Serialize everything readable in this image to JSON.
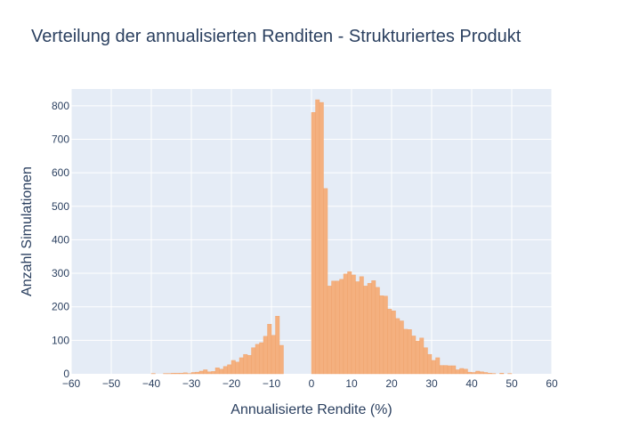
{
  "colors": {
    "plot_bg": "#e5ecf6",
    "grid": "#ffffff",
    "bar_fill": "#f4b07f",
    "bar_stroke": "#f0a26a",
    "text": "#2a3f5f"
  },
  "chart_data": {
    "type": "bar",
    "title": "Verteilung der annualisierten Renditen - Strukturiertes Produkt",
    "xlabel": "Annualisierte Rendite (%)",
    "ylabel": "Anzahl Simulationen",
    "xlim": [
      -60,
      60
    ],
    "ylim": [
      0,
      850
    ],
    "x_ticks": [
      "−60",
      "−50",
      "−40",
      "−30",
      "−20",
      "−10",
      "0",
      "10",
      "20",
      "30",
      "40",
      "50",
      "60"
    ],
    "y_ticks": [
      "0",
      "100",
      "200",
      "300",
      "400",
      "500",
      "600",
      "700",
      "800"
    ],
    "bin_width": 1,
    "grid": true,
    "bins": [
      {
        "x": -40,
        "y": 1
      },
      {
        "x": -37,
        "y": 1
      },
      {
        "x": -36,
        "y": 1
      },
      {
        "x": -35,
        "y": 2
      },
      {
        "x": -34,
        "y": 2
      },
      {
        "x": -33,
        "y": 2
      },
      {
        "x": -32,
        "y": 3
      },
      {
        "x": -31,
        "y": 1
      },
      {
        "x": -30,
        "y": 4
      },
      {
        "x": -29,
        "y": 5
      },
      {
        "x": -28,
        "y": 8
      },
      {
        "x": -27,
        "y": 12
      },
      {
        "x": -26,
        "y": 6
      },
      {
        "x": -25,
        "y": 7
      },
      {
        "x": -24,
        "y": 18
      },
      {
        "x": -23,
        "y": 14
      },
      {
        "x": -22,
        "y": 22
      },
      {
        "x": -21,
        "y": 27
      },
      {
        "x": -20,
        "y": 40
      },
      {
        "x": -19,
        "y": 35
      },
      {
        "x": -18,
        "y": 48
      },
      {
        "x": -17,
        "y": 58
      },
      {
        "x": -16,
        "y": 55
      },
      {
        "x": -15,
        "y": 78
      },
      {
        "x": -14,
        "y": 88
      },
      {
        "x": -13,
        "y": 93
      },
      {
        "x": -12,
        "y": 112
      },
      {
        "x": -11,
        "y": 148
      },
      {
        "x": -10,
        "y": 115
      },
      {
        "x": -9,
        "y": 172
      },
      {
        "x": -8,
        "y": 85
      },
      {
        "x": 0,
        "y": 780
      },
      {
        "x": 1,
        "y": 818
      },
      {
        "x": 2,
        "y": 810
      },
      {
        "x": 3,
        "y": 553
      },
      {
        "x": 4,
        "y": 262
      },
      {
        "x": 5,
        "y": 277
      },
      {
        "x": 6,
        "y": 277
      },
      {
        "x": 7,
        "y": 282
      },
      {
        "x": 8,
        "y": 298
      },
      {
        "x": 9,
        "y": 305
      },
      {
        "x": 10,
        "y": 295
      },
      {
        "x": 11,
        "y": 275
      },
      {
        "x": 12,
        "y": 290
      },
      {
        "x": 13,
        "y": 262
      },
      {
        "x": 14,
        "y": 270
      },
      {
        "x": 15,
        "y": 278
      },
      {
        "x": 16,
        "y": 258
      },
      {
        "x": 17,
        "y": 233
      },
      {
        "x": 18,
        "y": 232
      },
      {
        "x": 19,
        "y": 193
      },
      {
        "x": 20,
        "y": 188
      },
      {
        "x": 21,
        "y": 165
      },
      {
        "x": 22,
        "y": 158
      },
      {
        "x": 23,
        "y": 133
      },
      {
        "x": 24,
        "y": 132
      },
      {
        "x": 25,
        "y": 113
      },
      {
        "x": 26,
        "y": 98
      },
      {
        "x": 27,
        "y": 107
      },
      {
        "x": 28,
        "y": 78
      },
      {
        "x": 29,
        "y": 58
      },
      {
        "x": 30,
        "y": 40
      },
      {
        "x": 31,
        "y": 48
      },
      {
        "x": 32,
        "y": 25
      },
      {
        "x": 33,
        "y": 25
      },
      {
        "x": 34,
        "y": 24
      },
      {
        "x": 35,
        "y": 24
      },
      {
        "x": 36,
        "y": 12
      },
      {
        "x": 37,
        "y": 16
      },
      {
        "x": 38,
        "y": 14
      },
      {
        "x": 39,
        "y": 5
      },
      {
        "x": 40,
        "y": 4
      },
      {
        "x": 41,
        "y": 8
      },
      {
        "x": 42,
        "y": 6
      },
      {
        "x": 43,
        "y": 4
      },
      {
        "x": 44,
        "y": 2
      },
      {
        "x": 45,
        "y": 1
      },
      {
        "x": 47,
        "y": 2
      },
      {
        "x": 49,
        "y": 1
      }
    ]
  }
}
